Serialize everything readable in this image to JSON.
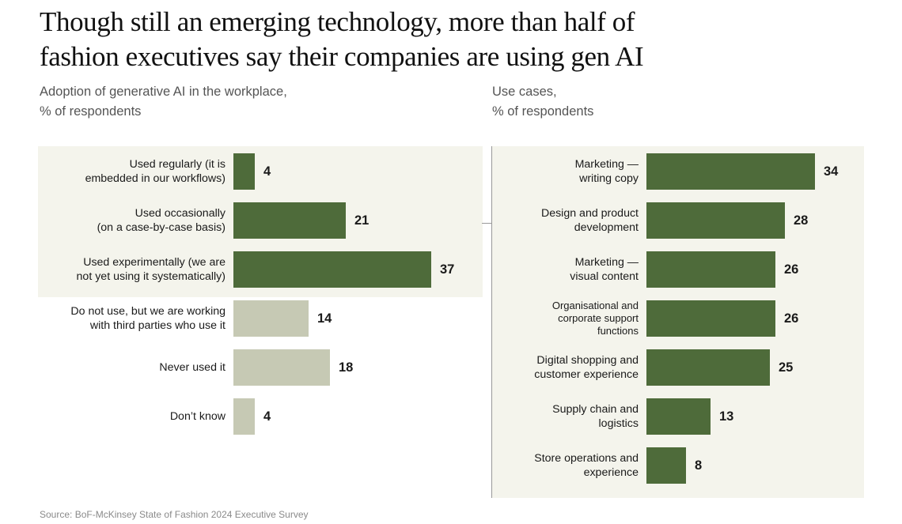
{
  "title": {
    "line1": "Though still an emerging technology, more than half of",
    "line2": "fashion executives say their companies are using gen AI"
  },
  "source": "Source: BoF-McKinsey State of Fashion 2024 Executive Survey",
  "colors": {
    "dark_green": "#4e6b3a",
    "light_gray": "#c6c9b4",
    "panel_bg": "#f4f4ec"
  },
  "chart_data": [
    {
      "type": "bar",
      "orientation": "horizontal",
      "title_lines": [
        "Adoption of generative AI in the workplace,",
        "% of respondents"
      ],
      "categories": [
        [
          "Used regularly (it is",
          "embedded in our workflows)"
        ],
        [
          "Used occasionally",
          "(on a case-by-case basis)"
        ],
        [
          "Used experimentally (we are",
          "not yet using it systematically)"
        ],
        [
          "Do not use, but we are working",
          "with third parties who use it"
        ],
        [
          "Never used it"
        ],
        [
          "Don’t know"
        ]
      ],
      "values": [
        4,
        21,
        37,
        14,
        18,
        4
      ],
      "groups": [
        "using",
        "using",
        "using",
        "not_using",
        "not_using",
        "not_using"
      ],
      "xlim": [
        0,
        37
      ]
    },
    {
      "type": "bar",
      "orientation": "horizontal",
      "title_lines": [
        "Use cases,",
        "% of respondents"
      ],
      "categories": [
        [
          "Marketing —",
          "writing copy"
        ],
        [
          "Design and product",
          "development"
        ],
        [
          "Marketing —",
          "visual content"
        ],
        [
          "Organisational and",
          "corporate support",
          "functions"
        ],
        [
          "Digital shopping and",
          "customer experience"
        ],
        [
          "Supply chain and",
          "logistics"
        ],
        [
          "Store operations and",
          "experience"
        ]
      ],
      "values": [
        34,
        28,
        26,
        26,
        25,
        13,
        8
      ],
      "xlim": [
        0,
        34
      ]
    }
  ]
}
